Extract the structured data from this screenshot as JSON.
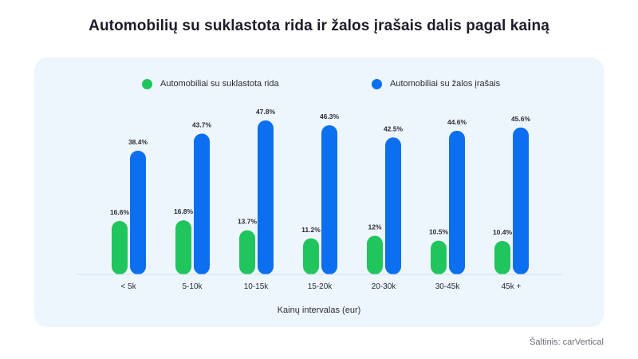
{
  "chart_data": {
    "type": "bar",
    "title": "Automobilių su suklastota rida ir žalos įrašais dalis pagal kainą",
    "xlabel": "Kainų intervalas (eur)",
    "ylabel": "",
    "categories": [
      "< 5k",
      "5-10k",
      "10-15k",
      "15-20k",
      "20-30k",
      "30-45k",
      "45k +"
    ],
    "series": [
      {
        "name": "Automobiliai su suklastota rida",
        "color": "#21c55d",
        "values": [
          16.6,
          16.8,
          13.7,
          11.2,
          12,
          10.5,
          10.4
        ],
        "labels": [
          "16.6%",
          "16.8%",
          "13.7%",
          "11.2%",
          "12%",
          "10.5%",
          "10.4%"
        ]
      },
      {
        "name": "Automobiliai su žalos įrašais",
        "color": "#0c6ff0",
        "values": [
          38.4,
          43.7,
          47.8,
          46.3,
          42.5,
          44.6,
          45.6
        ],
        "labels": [
          "38.4%",
          "43.7%",
          "47.8%",
          "46.3%",
          "42.5%",
          "44.6%",
          "45.6%"
        ]
      }
    ],
    "ylim": [
      0,
      50
    ],
    "grid": false,
    "legend_position": "top"
  },
  "source": "Šaltinis: carVertical"
}
